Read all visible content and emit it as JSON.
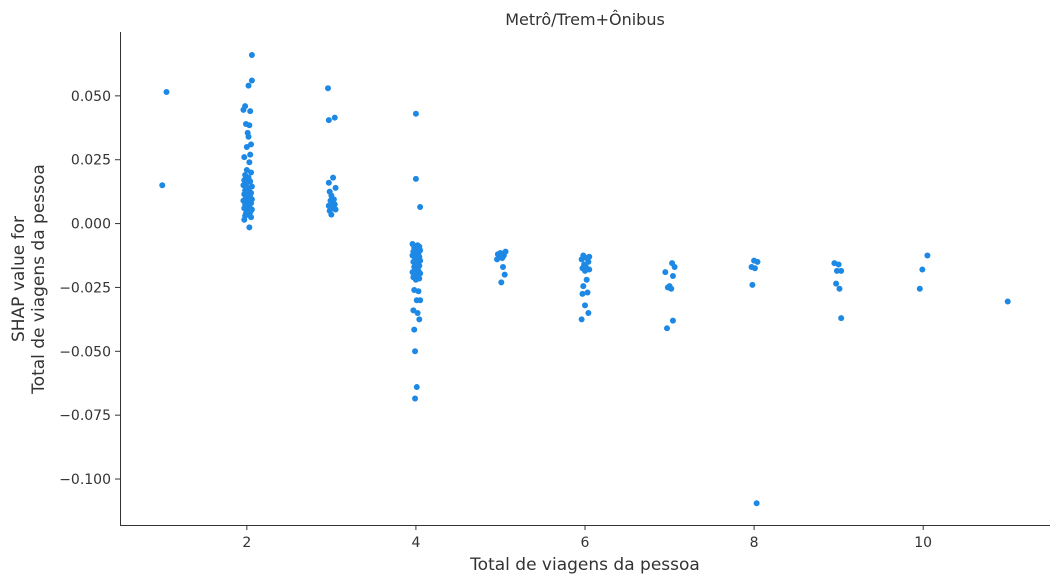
{
  "chart_data": {
    "type": "scatter",
    "title": "Metrô/Trem+Ônibus",
    "xlabel": "Total de viagens da pessoa",
    "ylabel_line1": "SHAP value for",
    "ylabel_line2": "Total de viagens da pessoa",
    "xlim": [
      0.5,
      11.5
    ],
    "ylim": [
      -0.118,
      0.075
    ],
    "xticks": [
      2,
      4,
      6,
      8,
      10
    ],
    "xtick_labels": [
      "2",
      "4",
      "6",
      "8",
      "10"
    ],
    "yticks": [
      0.05,
      0.025,
      0.0,
      -0.025,
      -0.05,
      -0.075,
      -0.1
    ],
    "ytick_labels": [
      "0.050",
      "0.025",
      "0.000",
      "−0.025",
      "−0.050",
      "−0.075",
      "−0.100"
    ],
    "grid": false,
    "color": "#1e88e5",
    "points": [
      [
        1.05,
        0.0515
      ],
      [
        1.0,
        0.015
      ],
      [
        2.06,
        0.066
      ],
      [
        2.06,
        0.056
      ],
      [
        2.02,
        0.054
      ],
      [
        1.98,
        0.046
      ],
      [
        1.96,
        0.0445
      ],
      [
        2.04,
        0.044
      ],
      [
        1.99,
        0.039
      ],
      [
        2.03,
        0.0385
      ],
      [
        2.01,
        0.0355
      ],
      [
        2.02,
        0.034
      ],
      [
        2.05,
        0.031
      ],
      [
        2.0,
        0.03
      ],
      [
        2.04,
        0.027
      ],
      [
        1.97,
        0.026
      ],
      [
        2.03,
        0.024
      ],
      [
        2.0,
        0.021
      ],
      [
        2.05,
        0.02
      ],
      [
        1.98,
        0.019
      ],
      [
        2.02,
        0.018
      ],
      [
        1.97,
        0.017
      ],
      [
        2.04,
        0.0165
      ],
      [
        2.0,
        0.016
      ],
      [
        1.96,
        0.015
      ],
      [
        2.06,
        0.0145
      ],
      [
        2.01,
        0.014
      ],
      [
        1.98,
        0.013
      ],
      [
        2.03,
        0.0125
      ],
      [
        2.05,
        0.012
      ],
      [
        1.97,
        0.0115
      ],
      [
        2.0,
        0.011
      ],
      [
        2.04,
        0.0105
      ],
      [
        1.99,
        0.01
      ],
      [
        2.06,
        0.0095
      ],
      [
        1.96,
        0.009
      ],
      [
        2.02,
        0.0085
      ],
      [
        2.05,
        0.008
      ],
      [
        1.98,
        0.0075
      ],
      [
        2.01,
        0.007
      ],
      [
        2.03,
        0.0065
      ],
      [
        1.97,
        0.006
      ],
      [
        2.06,
        0.0055
      ],
      [
        2.0,
        0.005
      ],
      [
        2.04,
        0.0045
      ],
      [
        1.99,
        0.004
      ],
      [
        2.02,
        0.0035
      ],
      [
        1.98,
        0.003
      ],
      [
        2.05,
        0.0025
      ],
      [
        1.97,
        0.0015
      ],
      [
        2.03,
        -0.0015
      ],
      [
        2.96,
        0.053
      ],
      [
        3.04,
        0.0415
      ],
      [
        2.97,
        0.0405
      ],
      [
        3.02,
        0.018
      ],
      [
        2.97,
        0.016
      ],
      [
        3.05,
        0.014
      ],
      [
        2.98,
        0.0125
      ],
      [
        3.0,
        0.011
      ],
      [
        3.03,
        0.0095
      ],
      [
        2.99,
        0.009
      ],
      [
        3.01,
        0.008
      ],
      [
        3.04,
        0.0075
      ],
      [
        2.97,
        0.007
      ],
      [
        3.02,
        0.006
      ],
      [
        3.05,
        0.0055
      ],
      [
        2.98,
        0.005
      ],
      [
        3.0,
        0.0035
      ],
      [
        4.0,
        0.043
      ],
      [
        4.0,
        0.0175
      ],
      [
        4.05,
        0.0065
      ],
      [
        3.96,
        -0.008
      ],
      [
        4.02,
        -0.0085
      ],
      [
        4.04,
        -0.009
      ],
      [
        3.98,
        -0.0095
      ],
      [
        4.01,
        -0.01
      ],
      [
        4.05,
        -0.0105
      ],
      [
        3.97,
        -0.011
      ],
      [
        4.03,
        -0.0115
      ],
      [
        4.0,
        -0.012
      ],
      [
        3.96,
        -0.0125
      ],
      [
        4.04,
        -0.013
      ],
      [
        3.99,
        -0.0135
      ],
      [
        4.02,
        -0.014
      ],
      [
        4.05,
        -0.0145
      ],
      [
        3.97,
        -0.015
      ],
      [
        4.01,
        -0.016
      ],
      [
        4.04,
        -0.0165
      ],
      [
        3.98,
        -0.017
      ],
      [
        4.0,
        -0.018
      ],
      [
        4.03,
        -0.0185
      ],
      [
        3.96,
        -0.019
      ],
      [
        4.05,
        -0.0195
      ],
      [
        4.02,
        -0.02
      ],
      [
        3.99,
        -0.0205
      ],
      [
        3.97,
        -0.021
      ],
      [
        4.04,
        -0.0215
      ],
      [
        4.0,
        -0.022
      ],
      [
        3.98,
        -0.026
      ],
      [
        4.03,
        -0.0265
      ],
      [
        4.01,
        -0.03
      ],
      [
        4.05,
        -0.03
      ],
      [
        3.97,
        -0.034
      ],
      [
        4.02,
        -0.035
      ],
      [
        4.04,
        -0.0375
      ],
      [
        3.98,
        -0.0415
      ],
      [
        3.99,
        -0.05
      ],
      [
        4.01,
        -0.064
      ],
      [
        3.99,
        -0.0685
      ],
      [
        5.06,
        -0.011
      ],
      [
        5.0,
        -0.0115
      ],
      [
        4.97,
        -0.012
      ],
      [
        5.04,
        -0.0125
      ],
      [
        4.99,
        -0.013
      ],
      [
        5.02,
        -0.0135
      ],
      [
        4.96,
        -0.014
      ],
      [
        5.03,
        -0.017
      ],
      [
        5.05,
        -0.02
      ],
      [
        5.01,
        -0.023
      ],
      [
        5.98,
        -0.0125
      ],
      [
        6.05,
        -0.013
      ],
      [
        6.02,
        -0.0135
      ],
      [
        5.96,
        -0.014
      ],
      [
        6.04,
        -0.015
      ],
      [
        5.99,
        -0.016
      ],
      [
        6.01,
        -0.017
      ],
      [
        5.97,
        -0.0175
      ],
      [
        6.05,
        -0.018
      ],
      [
        6.0,
        -0.0185
      ],
      [
        6.02,
        -0.022
      ],
      [
        5.98,
        -0.0245
      ],
      [
        6.03,
        -0.027
      ],
      [
        5.97,
        -0.0275
      ],
      [
        6.0,
        -0.032
      ],
      [
        6.04,
        -0.035
      ],
      [
        5.96,
        -0.0375
      ],
      [
        7.03,
        -0.0155
      ],
      [
        7.06,
        -0.017
      ],
      [
        6.95,
        -0.019
      ],
      [
        7.04,
        -0.0205
      ],
      [
        6.98,
        -0.025
      ],
      [
        7.02,
        -0.0255
      ],
      [
        7.0,
        -0.0245
      ],
      [
        7.04,
        -0.038
      ],
      [
        6.97,
        -0.041
      ],
      [
        8.04,
        -0.015
      ],
      [
        8.0,
        -0.0145
      ],
      [
        7.97,
        -0.017
      ],
      [
        8.01,
        -0.0175
      ],
      [
        7.98,
        -0.024
      ],
      [
        8.03,
        -0.1095
      ],
      [
        8.95,
        -0.0155
      ],
      [
        9.0,
        -0.016
      ],
      [
        8.98,
        -0.0185
      ],
      [
        9.03,
        -0.0185
      ],
      [
        8.97,
        -0.0235
      ],
      [
        9.01,
        -0.0255
      ],
      [
        9.03,
        -0.037
      ],
      [
        10.05,
        -0.0125
      ],
      [
        9.99,
        -0.018
      ],
      [
        9.96,
        -0.0255
      ],
      [
        11.0,
        -0.0305
      ]
    ]
  }
}
